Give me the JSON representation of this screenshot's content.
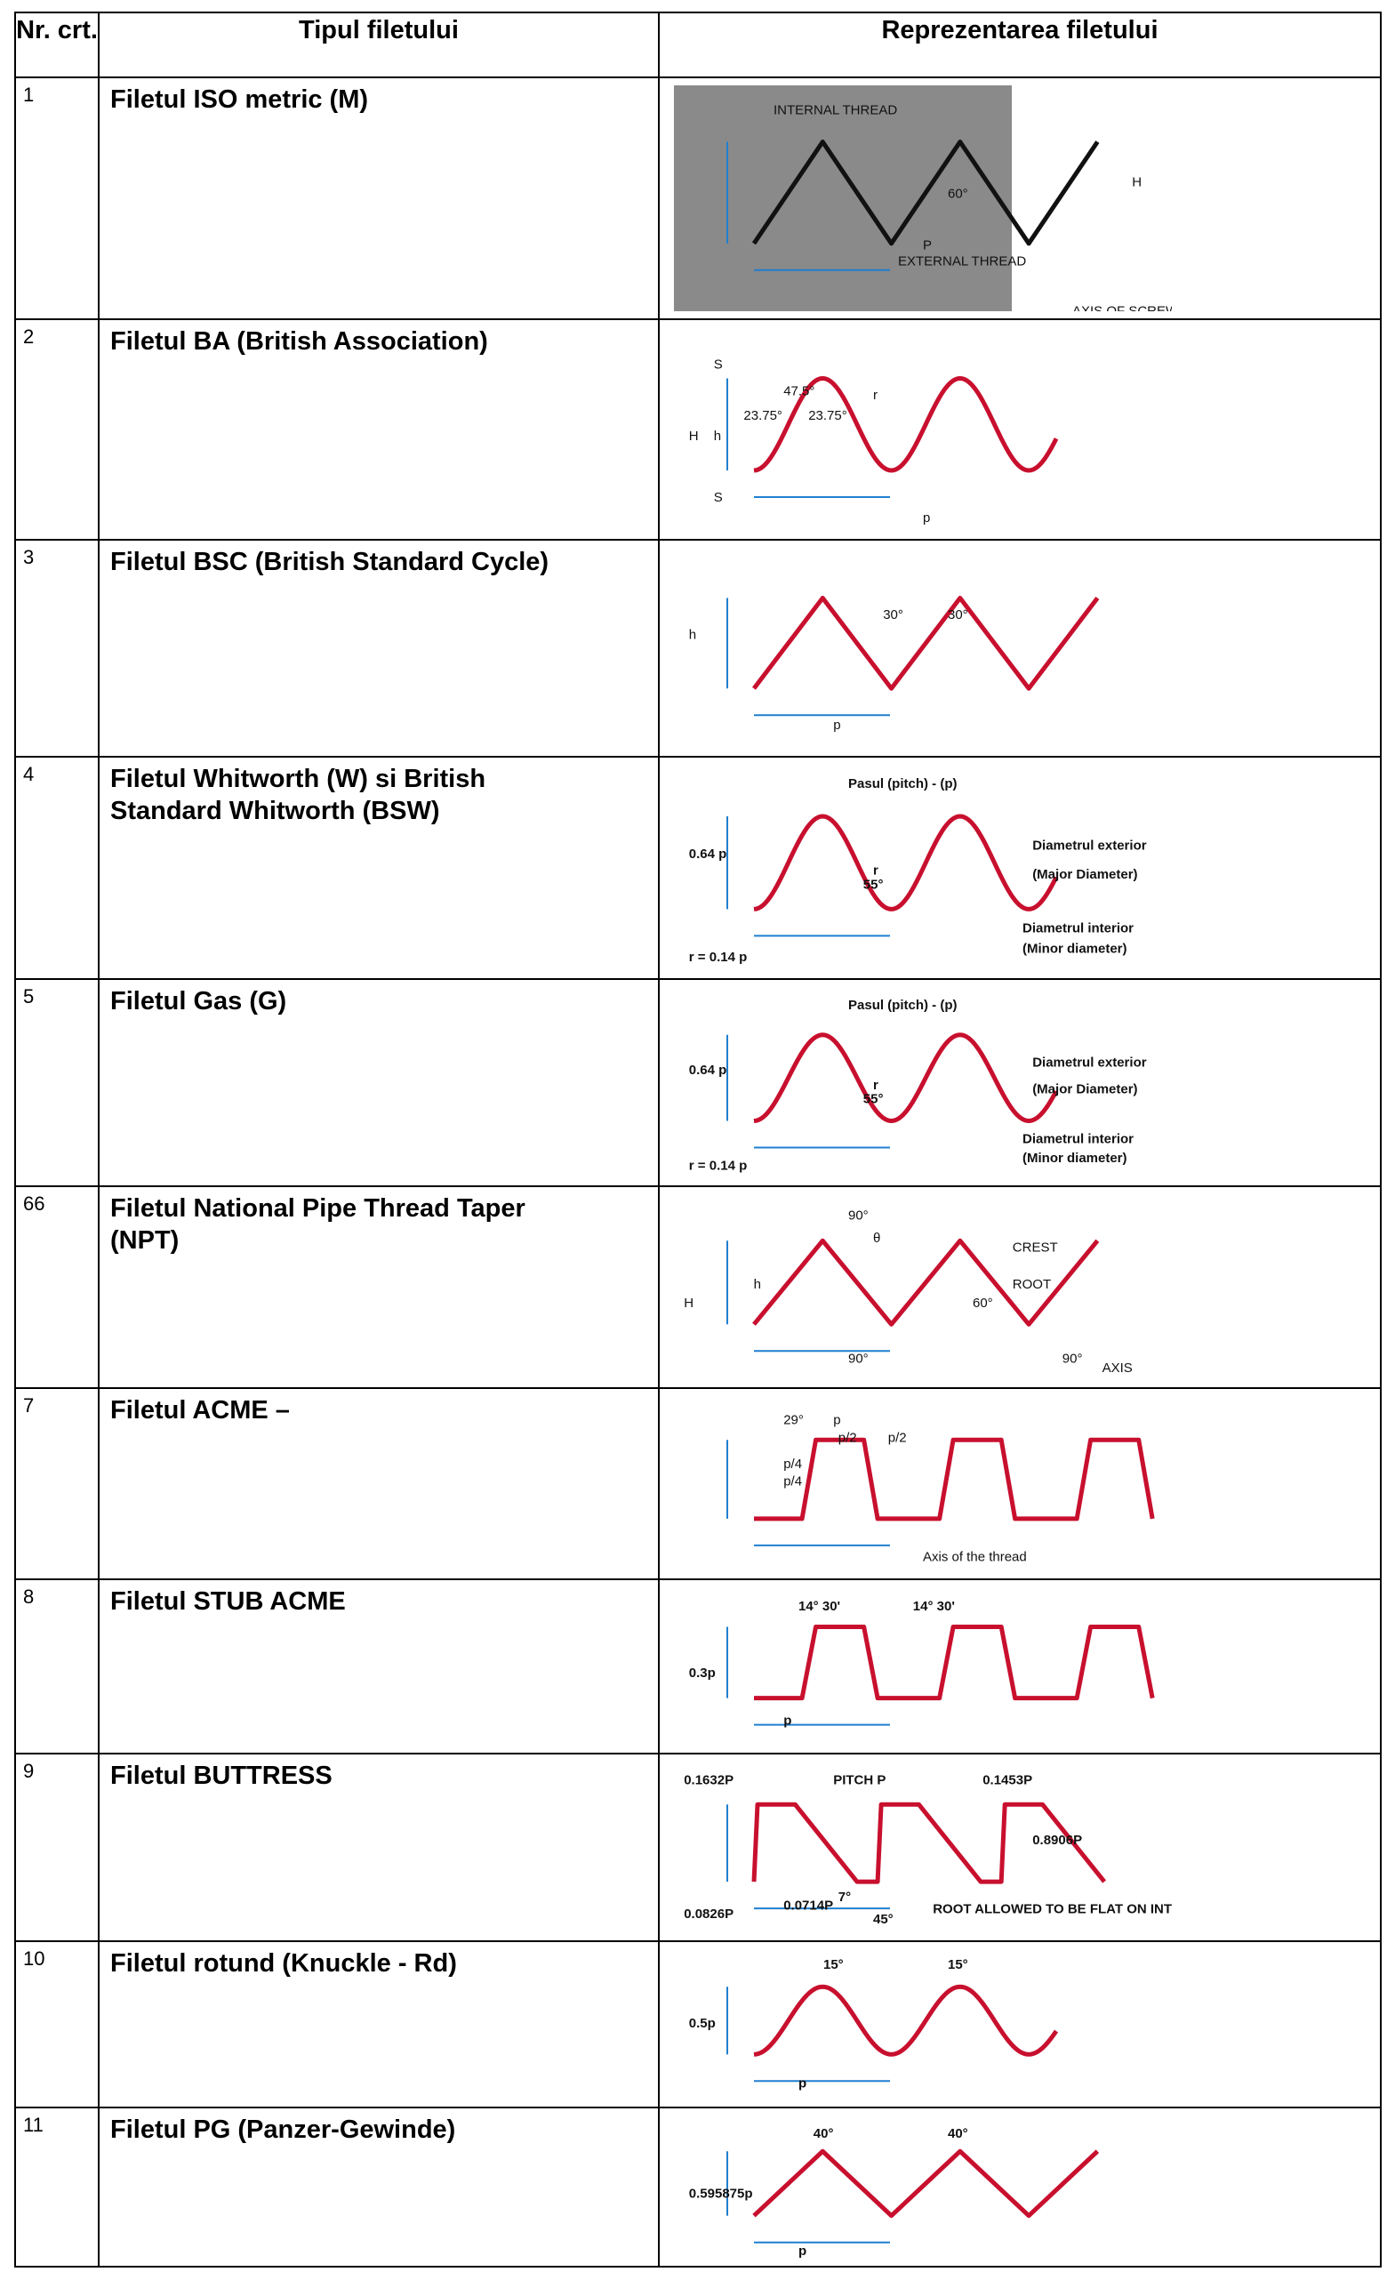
{
  "header": {
    "nr": "Nr. crt.",
    "type": "Tipul filetului",
    "repr": "Reprezentarea filetului"
  },
  "rows": [
    {
      "nr": "1",
      "name": "Filetul ISO metric (M)",
      "labels": [
        "INTERNAL THREAD",
        "EXTERNAL THREAD",
        "60°",
        "P",
        "H",
        "AXIS OF SCREW THREAD"
      ]
    },
    {
      "nr": "2",
      "name": "Filetul BA (British Association)",
      "labels": [
        "47.5°",
        "23.75°",
        "23.75°",
        "H",
        "h",
        "S",
        "S",
        "p",
        "r"
      ]
    },
    {
      "nr": "3",
      "name": "Filetul BSC (British Standard Cycle)",
      "labels": [
        "30°",
        "30°",
        "h",
        "p"
      ]
    },
    {
      "nr": "4",
      "name": "Filetul Whitworth (W) si British Standard Whitworth (BSW)",
      "labels": [
        "Pasul (pitch) - (p)",
        "0.64 p",
        "55°",
        "r",
        "Diametrul exterior",
        "(Major Diameter)",
        "Diametrul interior",
        "(Minor diameter)",
        "r = 0.14 p"
      ]
    },
    {
      "nr": "5",
      "name": "Filetul Gas (G)",
      "labels": [
        "Pasul (pitch) - (p)",
        "0.64 p",
        "55°",
        "r",
        "Diametrul exterior",
        "(Major Diameter)",
        "Diametrul interior",
        "(Minor diameter)",
        "r = 0.14 p"
      ]
    },
    {
      "nr": "66",
      "name": "Filetul National Pipe Thread Taper (NPT)",
      "labels": [
        "90°",
        "θ",
        "CREST",
        "ROOT",
        "60°",
        "H",
        "h",
        "90°",
        "90°",
        "AXIS"
      ]
    },
    {
      "nr": "7",
      "name": "Filetul ACME –",
      "labels": [
        "29°",
        "p",
        "p/2",
        "p/2",
        "p/4",
        "p/4",
        "Axis of the thread"
      ]
    },
    {
      "nr": "8",
      "name": "Filetul STUB ACME",
      "labels": [
        "14° 30'",
        "14° 30'",
        "0.3p",
        "p"
      ]
    },
    {
      "nr": "9",
      "name": "Filetul BUTTRESS",
      "labels": [
        "0.1632P",
        "PITCH P",
        "0.1453P",
        "0.8906P",
        "0.0826P",
        "0.0714P",
        "7°",
        "45°",
        "ROOT ALLOWED TO BE FLAT ON INTERNAL THREADS"
      ]
    },
    {
      "nr": "10",
      "name": "Filetul rotund (Knuckle - Rd)",
      "labels": [
        "15°",
        "15°",
        "0.5p",
        "p"
      ]
    },
    {
      "nr": "11",
      "name": "Filetul PG (Panzer-Gewinde)",
      "labels": [
        "40°",
        "40°",
        "0.595875p",
        "p"
      ]
    }
  ]
}
